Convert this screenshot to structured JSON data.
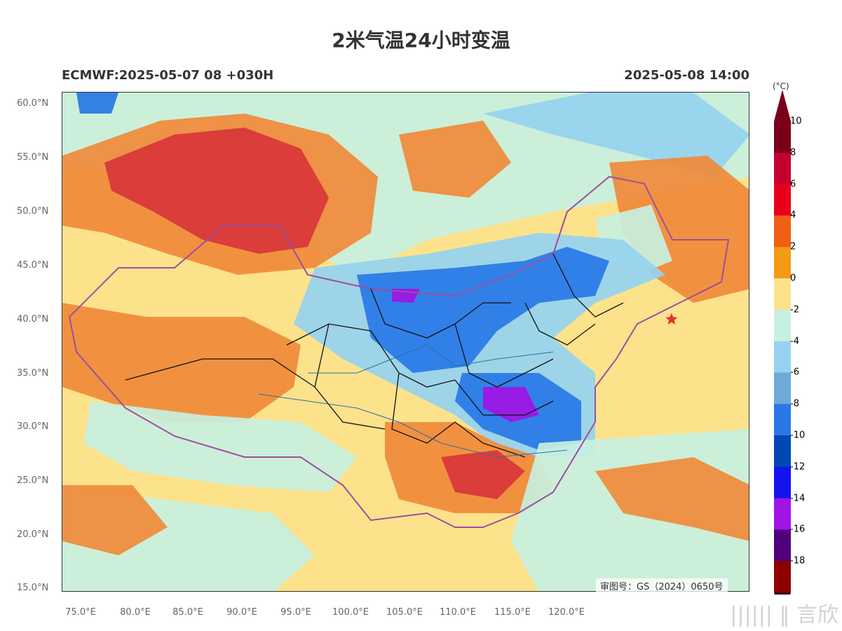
{
  "title": "2米气温24小时变温",
  "subtitle_left": "ECMWF:2025-05-07 08 +030H",
  "subtitle_right": "2025-05-08 14:00",
  "review_number": "审图号：GS（2024）0650号",
  "colorbar": {
    "unit": "(°C)",
    "labels": [
      "10",
      "8",
      "6",
      "4",
      "2",
      "0",
      "-2",
      "-4",
      "-6",
      "-8",
      "-10",
      "-12",
      "-14",
      "-16",
      "-18"
    ],
    "colors": [
      "#7a0019",
      "#c40030",
      "#e8001a",
      "#f06014",
      "#f59a14",
      "#fde28c",
      "#c8f0e0",
      "#96d2f0",
      "#6eaad8",
      "#2878e6",
      "#0048b4",
      "#1414f0",
      "#a014e6",
      "#50007a",
      "#8c0000"
    ],
    "top_arrow_color": "#7a0019",
    "bottom_arrow_color": "#3c0010"
  },
  "axes": {
    "lat_labels": [
      "60.0°N",
      "55.0°N",
      "50.0°N",
      "45.0°N",
      "40.0°N",
      "35.0°N",
      "30.0°N",
      "25.0°N",
      "20.0°N",
      "15.0°N"
    ],
    "lon_labels": [
      "75.0°E",
      "80.0°E",
      "85.0°E",
      "90.0°E",
      "95.0°E",
      "100.0°E",
      "105.0°E",
      "110.0°E",
      "115.0°E",
      "120.0°E"
    ]
  },
  "map": {
    "lon_range": [
      73,
      122
    ],
    "lat_range": [
      14.5,
      61
    ],
    "marker": {
      "name": "Beijing star",
      "lon": 116.4,
      "lat": 39.9,
      "color": "#e83030"
    },
    "field_colors": {
      "warm_strong": "#d8363a",
      "warm": "#f08a3a",
      "mild": "#fde28c",
      "cool": "#c8f0e0",
      "cold": "#96d2f0",
      "colder": "#2878e6",
      "coldest": "#a014e6"
    }
  },
  "watermark": "|||||| ‖ 言欣"
}
